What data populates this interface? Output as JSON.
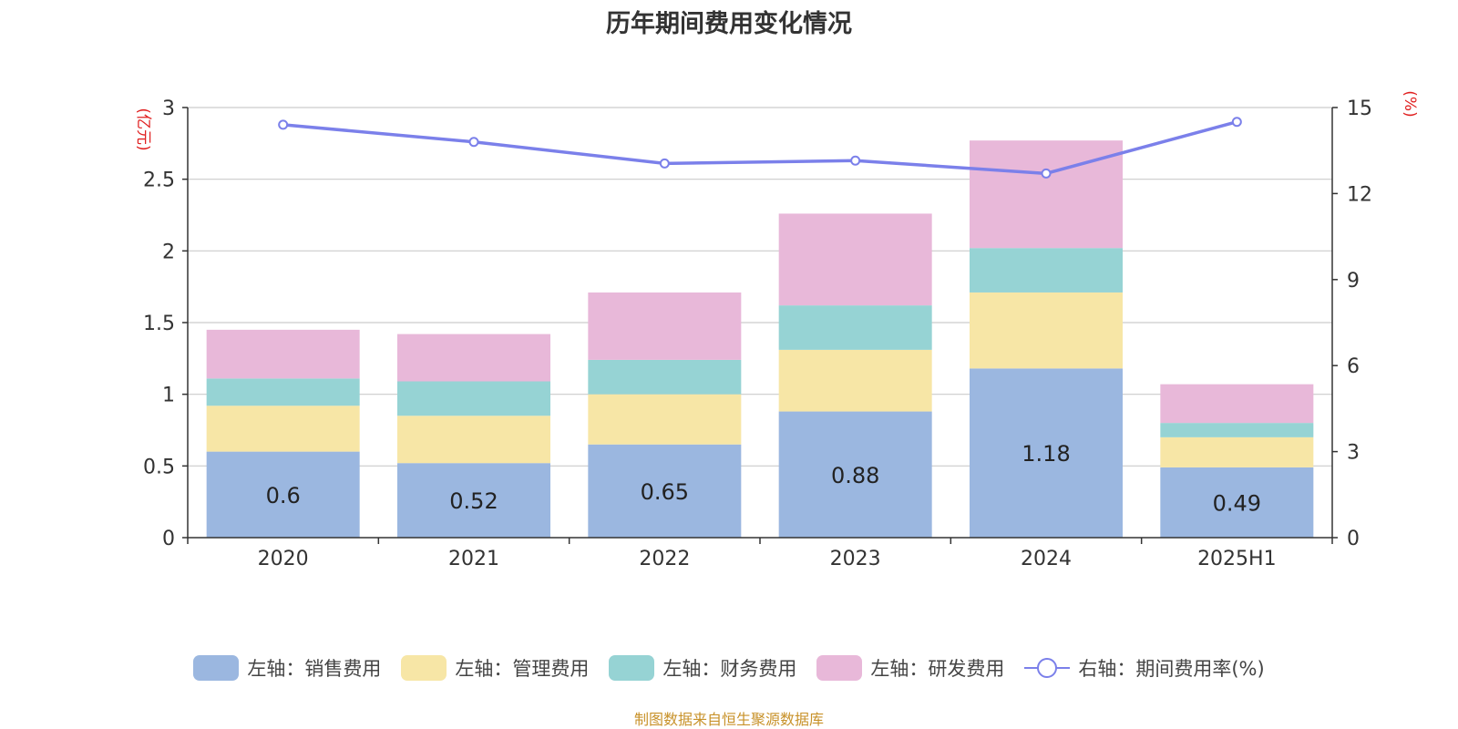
{
  "title": "历年期间费用变化情况",
  "source": "制图数据来自恒生聚源数据库",
  "chart_data": {
    "type": "bar",
    "stacked": true,
    "categories": [
      "2020",
      "2021",
      "2022",
      "2023",
      "2024",
      "2025H1"
    ],
    "left_axis": {
      "label": "(亿元)",
      "range": [
        0,
        3
      ],
      "ticks": [
        "0",
        "0.5",
        "1",
        "1.5",
        "2",
        "2.5",
        "3"
      ]
    },
    "right_axis": {
      "label": "(%)",
      "range": [
        0,
        15
      ],
      "ticks": [
        "0",
        "3",
        "6",
        "9",
        "12",
        "15"
      ]
    },
    "series": [
      {
        "name": "左轴：销售费用",
        "color": "#9bb7e0",
        "values": [
          0.6,
          0.52,
          0.65,
          0.88,
          1.18,
          0.49
        ],
        "labels": [
          "0.6",
          "0.52",
          "0.65",
          "0.88",
          "1.18",
          "0.49"
        ]
      },
      {
        "name": "左轴：管理费用",
        "color": "#f7e6a6",
        "values": [
          0.32,
          0.33,
          0.35,
          0.43,
          0.53,
          0.21
        ]
      },
      {
        "name": "左轴：财务费用",
        "color": "#96d3d4",
        "values": [
          0.19,
          0.24,
          0.24,
          0.31,
          0.31,
          0.1
        ]
      },
      {
        "name": "左轴：研发费用",
        "color": "#e8b8d9",
        "values": [
          0.34,
          0.33,
          0.47,
          0.64,
          0.75,
          0.27
        ]
      }
    ],
    "line": {
      "name": "右轴：期间费用率(%)",
      "color": "#7b80ea",
      "values": [
        14.4,
        13.8,
        13.05,
        13.15,
        12.7,
        14.5
      ]
    },
    "grid": true,
    "legend_position": "bottom"
  }
}
